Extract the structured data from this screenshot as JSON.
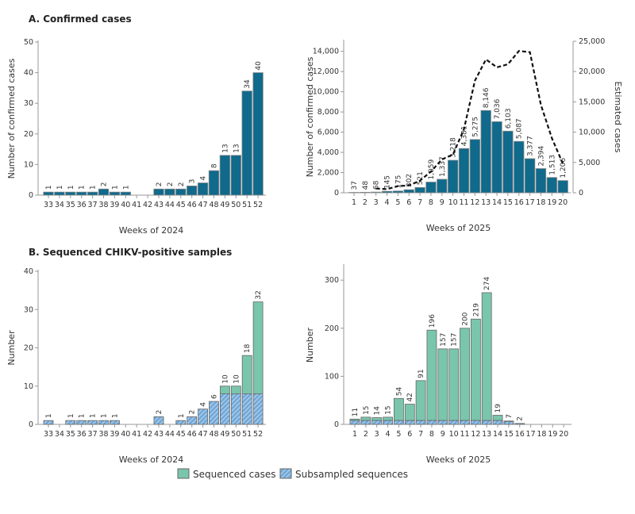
{
  "colors": {
    "confirmed": "#0f6a8c",
    "sequenced": "#79c6ad",
    "subsampled": "#6ea6d8",
    "subsampled_stripe": "#a9cbe8",
    "estimated": "#111111",
    "axis": "#888888"
  },
  "legend": {
    "sequenced": "Sequenced cases",
    "subsampled": "Subsampled sequences"
  },
  "chart_data": [
    {
      "id": "A1",
      "panel_title": "A. Confirmed cases",
      "type": "bar",
      "xlabel": "Weeks of 2024",
      "ylabel": "Number of confirmed cases",
      "ylim": [
        0,
        50
      ],
      "yticks": [
        "0",
        "10",
        "20",
        "30",
        "40",
        "50"
      ],
      "categories": [
        "33",
        "34",
        "35",
        "36",
        "37",
        "38",
        "39",
        "40",
        "41",
        "42",
        "43",
        "44",
        "45",
        "46",
        "47",
        "48",
        "49",
        "50",
        "51",
        "52"
      ],
      "values": [
        1,
        1,
        1,
        1,
        1,
        2,
        1,
        1,
        0,
        0,
        2,
        2,
        2,
        3,
        4,
        8,
        13,
        13,
        34,
        40
      ],
      "labels": [
        "1",
        "1",
        "1",
        "1",
        "1",
        "2",
        "1",
        "1",
        "",
        "",
        "2",
        "2",
        "2",
        "3",
        "4",
        "8",
        "13",
        "13",
        "34",
        "40"
      ]
    },
    {
      "id": "A2",
      "type": "bar+line",
      "xlabel": "Weeks of 2025",
      "ylabel": "Number of confirmed cases",
      "y2label": "Estimated cases",
      "ylim": [
        0,
        15000
      ],
      "y2lim": [
        0,
        25000
      ],
      "yticks": [
        "0",
        "2,000",
        "4,000",
        "6,000",
        "8,000",
        "10,000",
        "12,000",
        "14,000"
      ],
      "y2ticks": [
        "0",
        "5,000",
        "10,000",
        "15,000",
        "20,000",
        "25,000"
      ],
      "categories": [
        "1",
        "2",
        "3",
        "4",
        "5",
        "6",
        "7",
        "8",
        "9",
        "10",
        "11",
        "12",
        "13",
        "14",
        "15",
        "16",
        "17",
        "18",
        "19",
        "20"
      ],
      "values": [
        37,
        48,
        68,
        145,
        175,
        302,
        521,
        1059,
        1337,
        3218,
        4381,
        5275,
        8146,
        7036,
        6103,
        5087,
        3377,
        2394,
        1513,
        1206
      ],
      "labels": [
        "37",
        "48",
        "68",
        "145",
        "175",
        "302",
        "521",
        "1,059",
        "1,337",
        "3,218",
        "4,381",
        "5,275",
        "8,146",
        "7,036",
        "6,103",
        "5,087",
        "3,377",
        "2,394",
        "1,513",
        "1,206"
      ],
      "series": [
        {
          "name": "Estimated cases",
          "style": "dashed",
          "x": [
            3,
            4,
            5,
            6,
            7,
            8,
            9,
            10,
            11,
            12,
            13,
            14,
            15,
            16,
            17,
            18,
            19,
            20
          ],
          "values": [
            700,
            600,
            1100,
            1200,
            2000,
            3500,
            5500,
            6300,
            10500,
            18500,
            22000,
            20700,
            21200,
            23400,
            23200,
            14500,
            9000,
            4800
          ]
        }
      ]
    },
    {
      "id": "B1",
      "panel_title": "B. Sequenced CHIKV-positive samples",
      "type": "stacked-bar",
      "xlabel": "Weeks of 2024",
      "ylabel": "Number",
      "ylim": [
        0,
        40
      ],
      "yticks": [
        "0",
        "10",
        "20",
        "30",
        "40"
      ],
      "categories": [
        "33",
        "34",
        "35",
        "36",
        "37",
        "38",
        "39",
        "40",
        "41",
        "42",
        "43",
        "44",
        "45",
        "46",
        "47",
        "48",
        "49",
        "50",
        "51",
        "52"
      ],
      "series": [
        {
          "name": "Subsampled sequences",
          "values": [
            1,
            0,
            1,
            1,
            1,
            1,
            1,
            0,
            0,
            0,
            2,
            0,
            1,
            2,
            4,
            6,
            8,
            8,
            8,
            8
          ]
        },
        {
          "name": "Sequenced cases",
          "values": [
            1,
            0,
            1,
            1,
            1,
            1,
            1,
            0,
            0,
            0,
            2,
            0,
            1,
            2,
            4,
            6,
            10,
            10,
            18,
            32
          ]
        }
      ],
      "labels": [
        "1",
        "",
        "1",
        "1",
        "1",
        "1",
        "1",
        "",
        "",
        "",
        "2",
        "",
        "1",
        "2",
        "4",
        "6",
        "10",
        "10",
        "18",
        "32"
      ]
    },
    {
      "id": "B2",
      "type": "stacked-bar",
      "xlabel": "Weeks of 2025",
      "ylabel": "Number",
      "ylim": [
        0,
        330
      ],
      "yticks": [
        "0",
        "100",
        "200",
        "300"
      ],
      "categories": [
        "1",
        "2",
        "3",
        "4",
        "5",
        "6",
        "7",
        "8",
        "9",
        "10",
        "11",
        "12",
        "13",
        "14",
        "15",
        "16",
        "17",
        "18",
        "19",
        "20"
      ],
      "series": [
        {
          "name": "Subsampled sequences",
          "values": [
            8,
            8,
            8,
            8,
            8,
            8,
            8,
            8,
            8,
            8,
            8,
            8,
            8,
            8,
            6,
            2,
            0,
            0,
            0,
            0
          ]
        },
        {
          "name": "Sequenced cases",
          "values": [
            11,
            15,
            14,
            15,
            54,
            42,
            91,
            196,
            157,
            157,
            200,
            219,
            274,
            19,
            7,
            2,
            0,
            0,
            0,
            0
          ]
        }
      ],
      "labels": [
        "11",
        "15",
        "14",
        "15",
        "54",
        "42",
        "91",
        "196",
        "157",
        "157",
        "200",
        "219",
        "274",
        "19",
        "7",
        "2",
        "",
        "",
        "",
        ""
      ]
    }
  ]
}
